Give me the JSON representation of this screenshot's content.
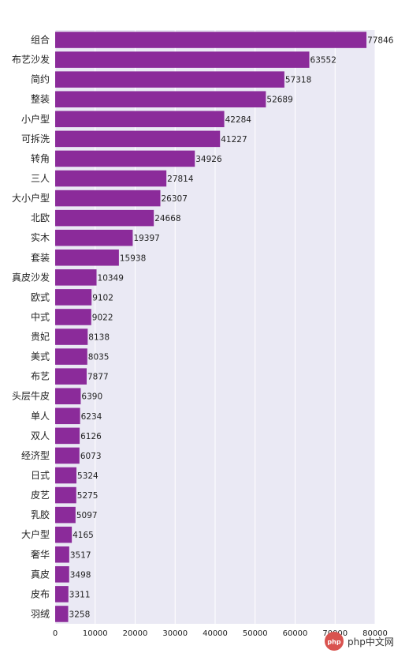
{
  "chart_data": {
    "type": "bar",
    "orientation": "horizontal",
    "title": "",
    "xlabel": "",
    "ylabel": "",
    "categories": [
      "组合",
      "布艺沙发",
      "简约",
      "整装",
      "小户型",
      "可拆洗",
      "转角",
      "三人",
      "大小户型",
      "北欧",
      "实木",
      "套装",
      "真皮沙发",
      "欧式",
      "中式",
      "贵妃",
      "美式",
      "布艺",
      "头层牛皮",
      "单人",
      "双人",
      "经济型",
      "日式",
      "皮艺",
      "乳胶",
      "大户型",
      "奢华",
      "真皮",
      "皮布",
      "羽绒"
    ],
    "values": [
      77846,
      63552,
      57318,
      52689,
      42284,
      41227,
      34926,
      27814,
      26307,
      24668,
      19397,
      15938,
      10349,
      9102,
      9022,
      8138,
      8035,
      7877,
      6390,
      6234,
      6126,
      6073,
      5324,
      5275,
      5097,
      4165,
      3517,
      3498,
      3311,
      3258
    ],
    "xlim": [
      0,
      80000
    ],
    "xticks": [
      0,
      10000,
      20000,
      30000,
      40000,
      50000,
      60000,
      70000,
      80000
    ],
    "grid": true,
    "bar_color": "#8b2b9a",
    "background_color": "#eae9f4",
    "grid_color": "#ffffff"
  },
  "watermark": {
    "text": "php中文网"
  }
}
